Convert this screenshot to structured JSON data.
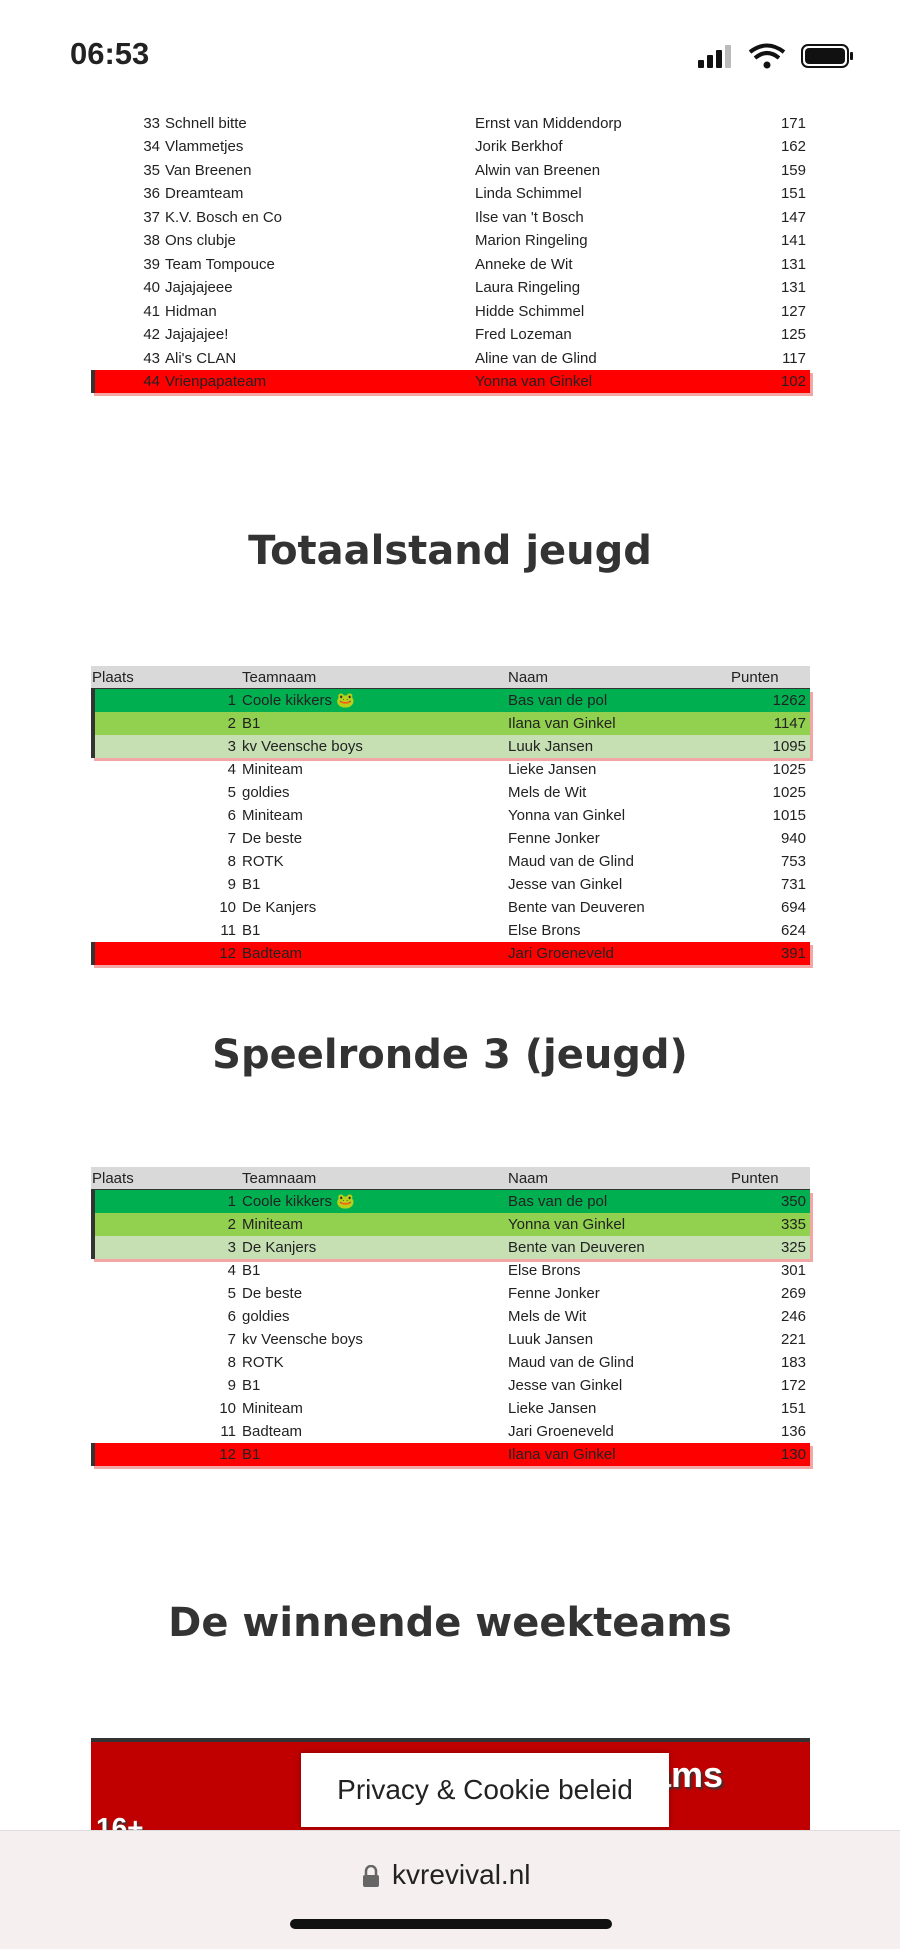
{
  "status_bar": {
    "time": "06:53"
  },
  "top_table": {
    "rows": [
      [
        33,
        "Schnell bitte",
        "Ernst van Middendorp",
        171
      ],
      [
        34,
        "Vlammetjes",
        "Jorik Berkhof",
        162
      ],
      [
        35,
        "Van Breenen",
        "Alwin van Breenen",
        159
      ],
      [
        36,
        "Dreamteam",
        "Linda Schimmel",
        151
      ],
      [
        37,
        "K.V. Bosch en Co",
        "Ilse van 't Bosch",
        147
      ],
      [
        38,
        "Ons clubje",
        "Marion Ringeling",
        141
      ],
      [
        39,
        "Team Tompouce",
        "Anneke de Wit",
        131
      ],
      [
        40,
        "Jajajajeee",
        "Laura Ringeling",
        131
      ],
      [
        41,
        "Hidman",
        "Hidde Schimmel",
        127
      ],
      [
        42,
        "Jajajajee!",
        "Fred Lozeman",
        125
      ],
      [
        43,
        "Ali's CLAN",
        "Aline van de Glind",
        117
      ],
      [
        44,
        "Vrienpapateam",
        "Yonna van Ginkel",
        102
      ]
    ]
  },
  "sections": [
    {
      "heading": "Totaalstand jeugd",
      "table": {
        "header": [
          "Plaats",
          "Teamnaam",
          "Naam",
          "Punten"
        ],
        "rows": [
          [
            1,
            "Coole kikkers 🐸",
            "Bas van de pol",
            1262
          ],
          [
            2,
            "B1",
            "Ilana van Ginkel",
            1147
          ],
          [
            3,
            "kv Veensche boys",
            "Luuk Jansen",
            1095
          ],
          [
            4,
            "Miniteam",
            "Lieke Jansen",
            1025
          ],
          [
            5,
            "goldies",
            "Mels de Wit",
            1025
          ],
          [
            6,
            "Miniteam",
            "Yonna van Ginkel",
            1015
          ],
          [
            7,
            "De beste",
            "Fenne Jonker",
            940
          ],
          [
            8,
            "ROTK",
            "Maud van de Glind",
            753
          ],
          [
            9,
            "B1",
            "Jesse van Ginkel",
            731
          ],
          [
            10,
            "De Kanjers",
            "Bente van Deuveren",
            694
          ],
          [
            11,
            "B1",
            "Else Brons",
            624
          ],
          [
            12,
            "Badteam",
            "Jari Groeneveld",
            391
          ]
        ]
      }
    },
    {
      "heading": "Speelronde 3 (jeugd)",
      "table": {
        "header": [
          "Plaats",
          "Teamnaam",
          "Naam",
          "Punten"
        ],
        "rows": [
          [
            1,
            "Coole kikkers 🐸",
            "Bas van de pol",
            350
          ],
          [
            2,
            "Miniteam",
            "Yonna van Ginkel",
            335
          ],
          [
            3,
            "De Kanjers",
            "Bente van Deuveren",
            325
          ],
          [
            4,
            "B1",
            "Else Brons",
            301
          ],
          [
            5,
            "De beste",
            "Fenne Jonker",
            269
          ],
          [
            6,
            "goldies",
            "Mels de Wit",
            246
          ],
          [
            7,
            "kv Veensche boys",
            "Luuk Jansen",
            221
          ],
          [
            8,
            "ROTK",
            "Maud van de Glind",
            183
          ],
          [
            9,
            "B1",
            "Jesse van Ginkel",
            172
          ],
          [
            10,
            "Miniteam",
            "Lieke Jansen",
            151
          ],
          [
            11,
            "Badteam",
            "Jari Groeneveld",
            136
          ],
          [
            12,
            "B1",
            "Ilana van Ginkel",
            130
          ]
        ]
      }
    }
  ],
  "weekteams": {
    "heading": "De winnende weekteams",
    "banner_title": "De winnende weekteams",
    "banner_label": "16+"
  },
  "cookie_button": "Privacy & Cookie beleid",
  "url": "kvrevival.nl"
}
